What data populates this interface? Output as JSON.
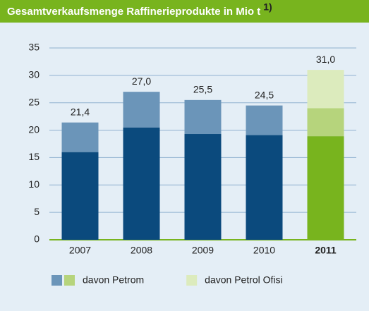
{
  "chart_data": {
    "type": "stacked-bar",
    "title": "Gesamtverkaufsmenge Raffinerieprodukte in Mio t",
    "title_note": "1)",
    "categories": [
      "2007",
      "2008",
      "2009",
      "2010",
      "2011"
    ],
    "highlight_index": 4,
    "series": [
      {
        "colors": [
          "#0b4a7d",
          "#0b4a7d",
          "#0b4a7d",
          "#0b4a7d",
          "#78b41e"
        ],
        "values": [
          16.0,
          20.5,
          19.3,
          19.1,
          18.9
        ]
      },
      {
        "name": "davon Petrom",
        "colors": [
          "#6b95b9",
          "#6b95b9",
          "#6b95b9",
          "#6b95b9",
          "#b6d47c"
        ],
        "values": [
          5.4,
          6.5,
          6.2,
          5.4,
          5.1
        ]
      },
      {
        "name": "davon Petrol Ofisi",
        "colors": [
          "#dcebbd",
          "#dcebbd",
          "#dcebbd",
          "#dcebbd",
          "#dcebbd"
        ],
        "values": [
          null,
          null,
          null,
          null,
          7.0
        ]
      }
    ],
    "totals": [
      21.4,
      27.0,
      25.5,
      24.5,
      31.0
    ],
    "total_labels": [
      "21,4",
      "27,0",
      "25,5",
      "24,5",
      "31,0"
    ],
    "ylim": [
      0,
      35
    ],
    "yticks": [
      0,
      5,
      10,
      15,
      20,
      25,
      30,
      35
    ],
    "grid": true
  }
}
